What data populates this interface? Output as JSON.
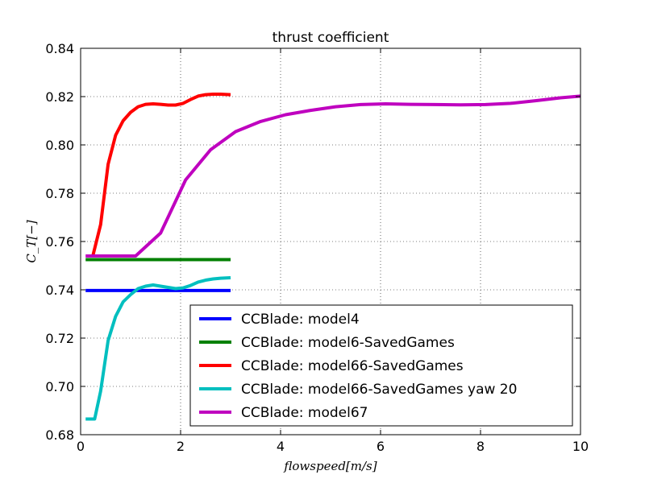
{
  "chart_data": {
    "type": "line",
    "title": "thrust coefficient",
    "xlabel": "flowspeed[m/s]",
    "ylabel": "C_T[−]",
    "xlim": [
      0,
      10
    ],
    "ylim": [
      0.68,
      0.84
    ],
    "xticks": [
      0,
      2,
      4,
      6,
      8,
      10
    ],
    "xtick_labels": [
      "0",
      "2",
      "4",
      "6",
      "8",
      "10"
    ],
    "yticks": [
      0.68,
      0.7,
      0.72,
      0.74,
      0.76,
      0.78,
      0.8,
      0.82,
      0.84
    ],
    "ytick_labels": [
      "0.68",
      "0.70",
      "0.72",
      "0.74",
      "0.76",
      "0.78",
      "0.80",
      "0.82",
      "0.84"
    ],
    "grid": true,
    "legend_position": "lower-right",
    "series": [
      {
        "name": "CCBlade: model4",
        "color": "#0000ff",
        "x": [
          0.1,
          3.0
        ],
        "y": [
          0.7397,
          0.7397
        ]
      },
      {
        "name": "CCBlade: model6-SavedGames",
        "color": "#008000",
        "x": [
          0.1,
          3.0
        ],
        "y": [
          0.7525,
          0.7525
        ]
      },
      {
        "name": "CCBlade: model66-SavedGames",
        "color": "#ff0000",
        "x": [
          0.25,
          0.4,
          0.55,
          0.7,
          0.85,
          1.0,
          1.15,
          1.3,
          1.45,
          1.6,
          1.75,
          1.9,
          2.05,
          2.2,
          2.35,
          2.5,
          2.65,
          2.8,
          3.0
        ],
        "y": [
          0.7545,
          0.767,
          0.792,
          0.804,
          0.81,
          0.8135,
          0.8158,
          0.8168,
          0.817,
          0.8168,
          0.8165,
          0.8165,
          0.8172,
          0.8188,
          0.8202,
          0.8208,
          0.821,
          0.821,
          0.8208
        ]
      },
      {
        "name": "CCBlade: model66-SavedGames yaw 20",
        "color": "#00bfbf",
        "x": [
          0.1,
          0.28,
          0.4,
          0.55,
          0.7,
          0.85,
          1.0,
          1.15,
          1.3,
          1.45,
          1.6,
          1.75,
          1.9,
          2.05,
          2.2,
          2.35,
          2.5,
          2.65,
          2.8,
          3.0
        ],
        "y": [
          0.6865,
          0.6865,
          0.698,
          0.719,
          0.729,
          0.735,
          0.738,
          0.7405,
          0.7415,
          0.742,
          0.7415,
          0.741,
          0.7405,
          0.7408,
          0.7418,
          0.7432,
          0.744,
          0.7445,
          0.7448,
          0.745
        ]
      },
      {
        "name": "CCBlade: model67",
        "color": "#bf00bf",
        "x": [
          0.1,
          0.6,
          1.1,
          1.6,
          2.1,
          2.6,
          3.1,
          3.6,
          4.1,
          4.6,
          5.1,
          5.6,
          6.1,
          6.6,
          7.1,
          7.6,
          8.1,
          8.6,
          9.1,
          9.6,
          10.0
        ],
        "y": [
          0.754,
          0.754,
          0.754,
          0.7635,
          0.7855,
          0.798,
          0.8055,
          0.8097,
          0.8125,
          0.8143,
          0.8158,
          0.8167,
          0.817,
          0.8168,
          0.8167,
          0.8166,
          0.8167,
          0.8172,
          0.8183,
          0.8195,
          0.8202
        ]
      }
    ]
  }
}
